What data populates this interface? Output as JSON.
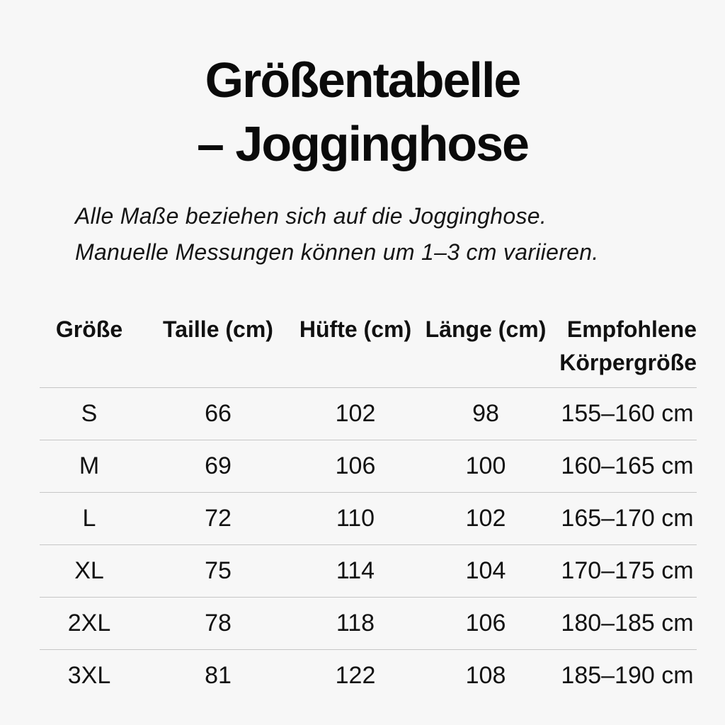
{
  "colors": {
    "background": "#f7f7f7",
    "text": "#111111",
    "divider": "#c6c6c6"
  },
  "title": {
    "line1": "Größentabelle",
    "line2": "– Jogginghose"
  },
  "subtitle": {
    "line1": "Alle Maße beziehen sich auf die Jogginghose.",
    "line2": "Manuelle Messungen können um 1–3 cm variieren."
  },
  "table": {
    "headers": {
      "size": "Größe",
      "waist": "Taille (cm)",
      "hip": "Hüfte (cm)",
      "length": "Länge (cm)",
      "height_line1": "Empfohlene",
      "height_line2": "Körpergröße"
    },
    "rows": [
      {
        "size": "S",
        "waist": "66",
        "hip": "102",
        "length": "98",
        "height": "155–160 cm"
      },
      {
        "size": "M",
        "waist": "69",
        "hip": "106",
        "length": "100",
        "height": "160–165 cm"
      },
      {
        "size": "L",
        "waist": "72",
        "hip": "110",
        "length": "102",
        "height": "165–170 cm"
      },
      {
        "size": "XL",
        "waist": "75",
        "hip": "114",
        "length": "104",
        "height": "170–175 cm"
      },
      {
        "size": "2XL",
        "waist": "78",
        "hip": "118",
        "length": "106",
        "height": "180–185 cm"
      },
      {
        "size": "3XL",
        "waist": "81",
        "hip": "122",
        "length": "108",
        "height": "185–190 cm"
      }
    ]
  },
  "chart_data": {
    "type": "table",
    "title": "Größentabelle – Jogginghose",
    "subtitle": "Alle Maße beziehen sich auf die Jogginghose. Manuelle Messungen können um 1–3 cm variieren.",
    "columns": [
      "Größe",
      "Taille (cm)",
      "Hüfte (cm)",
      "Länge (cm)",
      "Empfohlene Körpergröße"
    ],
    "rows": [
      [
        "S",
        66,
        102,
        98,
        "155–160 cm"
      ],
      [
        "M",
        69,
        106,
        100,
        "160–165 cm"
      ],
      [
        "L",
        72,
        110,
        102,
        "165–170 cm"
      ],
      [
        "XL",
        75,
        114,
        104,
        "170–175 cm"
      ],
      [
        "2XL",
        78,
        118,
        106,
        "180–185 cm"
      ],
      [
        "3XL",
        81,
        122,
        108,
        "185–190 cm"
      ]
    ]
  }
}
